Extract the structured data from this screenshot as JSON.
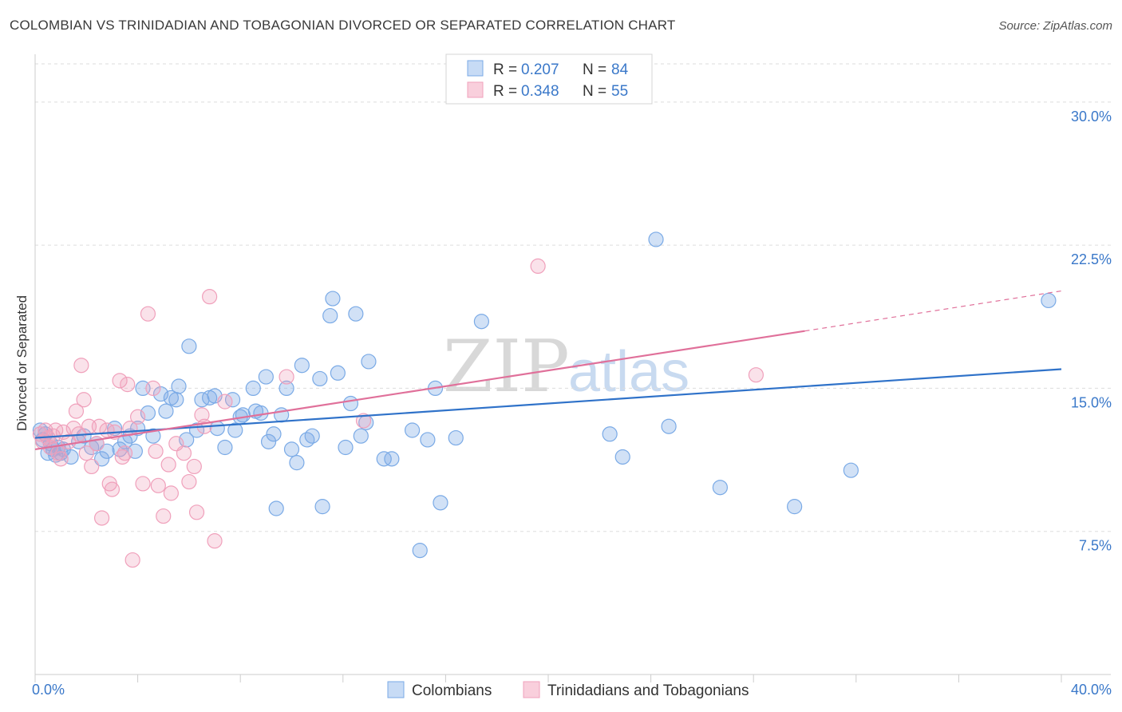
{
  "title": "COLOMBIAN VS TRINIDADIAN AND TOBAGONIAN DIVORCED OR SEPARATED CORRELATION CHART",
  "source": "Source: ZipAtlas.com",
  "watermark": {
    "zip": "ZIP",
    "atlas": "atlas"
  },
  "legend": {
    "rows": [
      {
        "r_label": "R = ",
        "r_value": "0.207",
        "n_label": "N = ",
        "n_value": "84",
        "color": "#a9c8f0"
      },
      {
        "r_label": "R = ",
        "r_value": "0.348",
        "n_label": "N = ",
        "n_value": "55",
        "color": "#f5b6c9"
      }
    ]
  },
  "bottom_legend": [
    {
      "label": "Colombians",
      "color": "#a9c8f0"
    },
    {
      "label": "Trinidadians and Tobagonians",
      "color": "#f5b6c9"
    }
  ],
  "chart_data": {
    "type": "scatter",
    "title": "COLOMBIAN VS TRINIDADIAN AND TOBAGONIAN DIVORCED OR SEPARATED CORRELATION CHART",
    "xlabel": "",
    "ylabel": "Divorced or Separated",
    "xlim": [
      0,
      40
    ],
    "ylim": [
      0,
      32
    ],
    "x_tick_labels": [
      {
        "value": 0,
        "label": "0.0%"
      },
      {
        "value": 40,
        "label": "40.0%"
      }
    ],
    "y_tick_labels": [
      {
        "value": 7.5,
        "label": "7.5%"
      },
      {
        "value": 15,
        "label": "15.0%"
      },
      {
        "value": 22.5,
        "label": "22.5%"
      },
      {
        "value": 30,
        "label": "30.0%"
      }
    ],
    "grid": true,
    "series": [
      {
        "name": "Colombians",
        "color": "#7aaae6",
        "trend": {
          "x": [
            0,
            40
          ],
          "y": [
            12.4,
            16.0
          ]
        },
        "points": [
          [
            0.2,
            12.8
          ],
          [
            0.3,
            12.3
          ],
          [
            0.4,
            12.6
          ],
          [
            0.5,
            11.6
          ],
          [
            0.6,
            12.1
          ],
          [
            0.7,
            11.8
          ],
          [
            0.8,
            11.5
          ],
          [
            0.9,
            11.9
          ],
          [
            1.0,
            11.6
          ],
          [
            1.1,
            11.8
          ],
          [
            1.4,
            11.4
          ],
          [
            1.7,
            12.2
          ],
          [
            1.9,
            12.5
          ],
          [
            2.2,
            11.9
          ],
          [
            2.4,
            12.1
          ],
          [
            2.6,
            11.3
          ],
          [
            2.8,
            11.7
          ],
          [
            3.1,
            12.9
          ],
          [
            3.3,
            11.8
          ],
          [
            3.5,
            12.2
          ],
          [
            3.7,
            12.5
          ],
          [
            3.9,
            11.7
          ],
          [
            4.0,
            12.9
          ],
          [
            4.2,
            15.0
          ],
          [
            4.4,
            13.7
          ],
          [
            4.6,
            12.5
          ],
          [
            4.9,
            14.7
          ],
          [
            5.1,
            13.8
          ],
          [
            5.3,
            14.5
          ],
          [
            5.5,
            14.4
          ],
          [
            5.6,
            15.1
          ],
          [
            5.9,
            12.3
          ],
          [
            6.0,
            17.2
          ],
          [
            6.3,
            12.8
          ],
          [
            6.5,
            14.4
          ],
          [
            6.8,
            14.5
          ],
          [
            7.0,
            14.6
          ],
          [
            7.1,
            12.9
          ],
          [
            7.4,
            11.9
          ],
          [
            7.7,
            14.4
          ],
          [
            7.8,
            12.8
          ],
          [
            8.0,
            13.5
          ],
          [
            8.1,
            13.6
          ],
          [
            8.5,
            15.0
          ],
          [
            8.6,
            13.8
          ],
          [
            8.8,
            13.7
          ],
          [
            9.0,
            15.6
          ],
          [
            9.1,
            12.2
          ],
          [
            9.3,
            12.6
          ],
          [
            9.4,
            8.7
          ],
          [
            9.6,
            13.6
          ],
          [
            9.8,
            15.0
          ],
          [
            10.0,
            11.8
          ],
          [
            10.2,
            11.1
          ],
          [
            10.4,
            16.2
          ],
          [
            10.6,
            12.3
          ],
          [
            10.8,
            12.5
          ],
          [
            11.1,
            15.5
          ],
          [
            11.2,
            8.8
          ],
          [
            11.5,
            18.8
          ],
          [
            11.6,
            19.7
          ],
          [
            11.8,
            15.8
          ],
          [
            12.1,
            11.9
          ],
          [
            12.3,
            14.2
          ],
          [
            12.5,
            18.9
          ],
          [
            12.7,
            12.5
          ],
          [
            12.9,
            13.2
          ],
          [
            13.0,
            16.4
          ],
          [
            13.6,
            11.3
          ],
          [
            13.9,
            11.3
          ],
          [
            14.7,
            12.8
          ],
          [
            15.3,
            12.3
          ],
          [
            15.6,
            15.0
          ],
          [
            15.8,
            9.0
          ],
          [
            16.4,
            12.4
          ],
          [
            15.0,
            6.5
          ],
          [
            17.4,
            18.5
          ],
          [
            22.4,
            12.6
          ],
          [
            22.9,
            11.4
          ],
          [
            24.2,
            22.8
          ],
          [
            24.7,
            13.0
          ],
          [
            26.7,
            9.8
          ],
          [
            29.6,
            8.8
          ],
          [
            31.8,
            10.7
          ],
          [
            39.5,
            19.6
          ]
        ]
      },
      {
        "name": "Trinidadians and Tobagonians",
        "color": "#f0a0bb",
        "trend": {
          "x": [
            0,
            30
          ],
          "y": [
            11.8,
            18.0
          ]
        },
        "trend_extension": {
          "x": [
            30,
            40
          ],
          "y": [
            18.0,
            20.1
          ]
        },
        "points": [
          [
            0.2,
            12.6
          ],
          [
            0.3,
            12.2
          ],
          [
            0.4,
            12.8
          ],
          [
            0.5,
            12.4
          ],
          [
            0.6,
            11.9
          ],
          [
            0.7,
            12.5
          ],
          [
            0.8,
            12.8
          ],
          [
            0.9,
            11.6
          ],
          [
            1.0,
            11.3
          ],
          [
            1.1,
            12.7
          ],
          [
            1.3,
            12.2
          ],
          [
            1.5,
            12.9
          ],
          [
            1.6,
            13.8
          ],
          [
            1.7,
            12.6
          ],
          [
            1.8,
            16.2
          ],
          [
            1.9,
            14.4
          ],
          [
            2.0,
            11.6
          ],
          [
            2.1,
            13.0
          ],
          [
            2.2,
            10.9
          ],
          [
            2.4,
            12.1
          ],
          [
            2.5,
            13.0
          ],
          [
            2.6,
            8.2
          ],
          [
            2.8,
            12.8
          ],
          [
            2.9,
            10.0
          ],
          [
            3.0,
            9.7
          ],
          [
            3.1,
            12.7
          ],
          [
            3.3,
            15.4
          ],
          [
            3.4,
            11.4
          ],
          [
            3.5,
            11.6
          ],
          [
            3.6,
            15.2
          ],
          [
            3.7,
            12.9
          ],
          [
            3.8,
            6.0
          ],
          [
            4.0,
            13.5
          ],
          [
            4.2,
            10.0
          ],
          [
            4.4,
            18.9
          ],
          [
            4.6,
            15.0
          ],
          [
            4.8,
            9.9
          ],
          [
            5.0,
            8.3
          ],
          [
            5.2,
            11.0
          ],
          [
            5.3,
            9.5
          ],
          [
            5.5,
            12.1
          ],
          [
            5.8,
            11.6
          ],
          [
            6.0,
            10.1
          ],
          [
            6.2,
            10.9
          ],
          [
            6.3,
            8.5
          ],
          [
            6.5,
            13.6
          ],
          [
            6.8,
            19.8
          ],
          [
            6.6,
            13.0
          ],
          [
            7.0,
            7.0
          ],
          [
            7.4,
            14.3
          ],
          [
            9.8,
            15.6
          ],
          [
            12.8,
            13.3
          ],
          [
            19.6,
            21.4
          ],
          [
            28.1,
            15.7
          ],
          [
            4.7,
            11.7
          ]
        ]
      }
    ]
  }
}
